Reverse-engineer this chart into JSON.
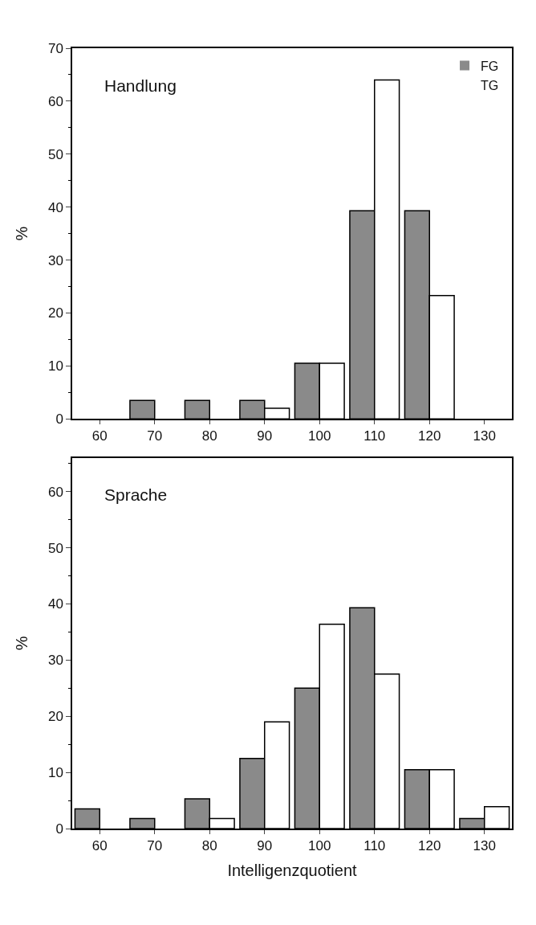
{
  "chart_data": [
    {
      "type": "bar",
      "title": "Handlung",
      "ylabel": "%",
      "categories": [
        "60",
        "70",
        "80",
        "90",
        "100",
        "110",
        "120",
        "130"
      ],
      "ylim": [
        0,
        70
      ],
      "yticks": [
        0,
        10,
        20,
        30,
        40,
        50,
        60,
        70
      ],
      "legend": "top right",
      "series": [
        {
          "name": "FG",
          "color": "#8a8a8a",
          "values": [
            0,
            3.5,
            3.5,
            3.5,
            10.5,
            39.3,
            39.3,
            0
          ]
        },
        {
          "name": "TG",
          "color": "#ffffff",
          "values": [
            0,
            0,
            0,
            2,
            10.5,
            64,
            23.3,
            0
          ]
        }
      ]
    },
    {
      "type": "bar",
      "title": "Sprache",
      "ylabel": "%",
      "xlabel": "Intelligenzquotient",
      "categories": [
        "60",
        "70",
        "80",
        "90",
        "100",
        "110",
        "120",
        "130"
      ],
      "ylim": [
        0,
        66
      ],
      "yticks": [
        0,
        10,
        20,
        30,
        40,
        50,
        60
      ],
      "series": [
        {
          "color": "#8a8a8a",
          "values": [
            3.5,
            1.8,
            5.3,
            12.5,
            25,
            39.3,
            10.5,
            1.8
          ]
        },
        {
          "color": "#ffffff",
          "values": [
            0,
            0,
            1.8,
            19,
            36.4,
            27.5,
            10.5,
            3.9
          ]
        }
      ]
    }
  ]
}
